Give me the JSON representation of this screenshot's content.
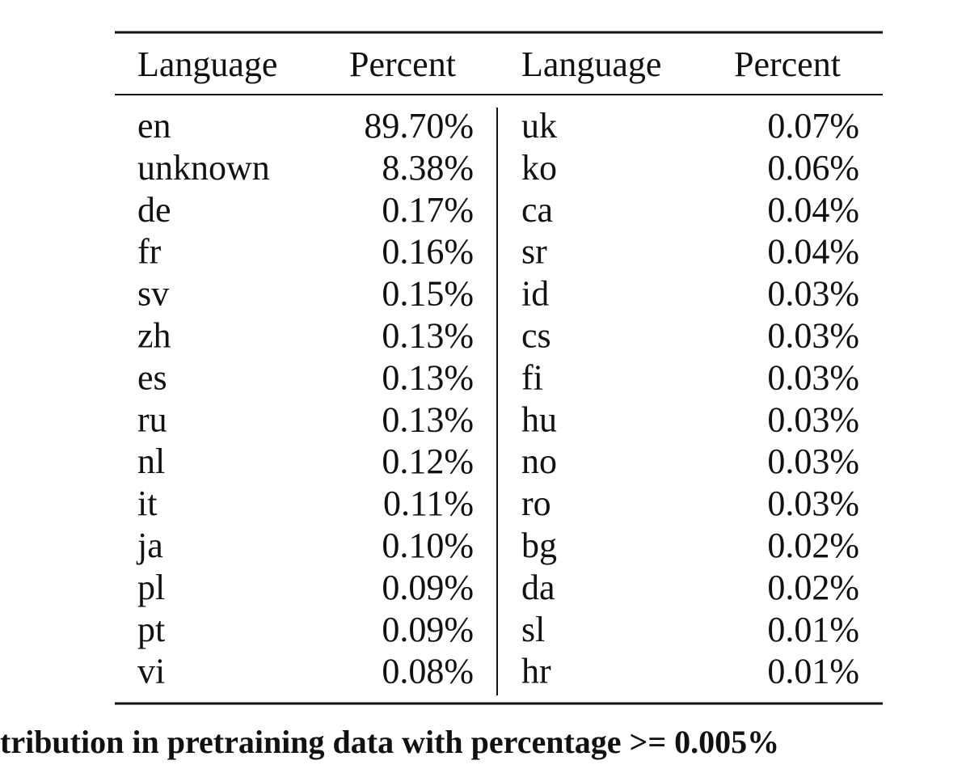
{
  "table": {
    "header": [
      "Language",
      "Percent",
      "Language",
      "Percent"
    ],
    "rows": [
      [
        "en",
        "89.70%",
        "uk",
        "0.07%"
      ],
      [
        "unknown",
        "8.38%",
        "ko",
        "0.06%"
      ],
      [
        "de",
        "0.17%",
        "ca",
        "0.04%"
      ],
      [
        "fr",
        "0.16%",
        "sr",
        "0.04%"
      ],
      [
        "sv",
        "0.15%",
        "id",
        "0.03%"
      ],
      [
        "zh",
        "0.13%",
        "cs",
        "0.03%"
      ],
      [
        "es",
        "0.13%",
        "fi",
        "0.03%"
      ],
      [
        "ru",
        "0.13%",
        "hu",
        "0.03%"
      ],
      [
        "nl",
        "0.12%",
        "no",
        "0.03%"
      ],
      [
        "it",
        "0.11%",
        "ro",
        "0.03%"
      ],
      [
        "ja",
        "0.10%",
        "bg",
        "0.02%"
      ],
      [
        "pl",
        "0.09%",
        "da",
        "0.02%"
      ],
      [
        "pt",
        "0.09%",
        "sl",
        "0.01%"
      ],
      [
        "vi",
        "0.08%",
        "hr",
        "0.01%"
      ]
    ],
    "caption": "tribution in pretraining data with percentage >= 0.005%"
  }
}
